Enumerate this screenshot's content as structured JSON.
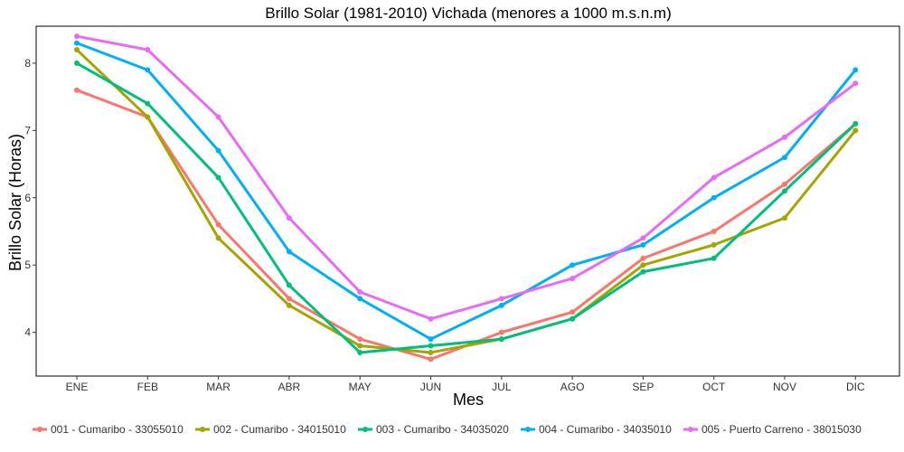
{
  "chart_data": {
    "type": "line",
    "title": "Brillo Solar (1981-2010) Vichada (menores a 1000 m.s.n.m)",
    "xlabel": "Mes",
    "ylabel": "Brillo Solar (Horas)",
    "categories": [
      "ENE",
      "FEB",
      "MAR",
      "ABR",
      "MAY",
      "JUN",
      "JUL",
      "AGO",
      "SEP",
      "OCT",
      "NOV",
      "DIC"
    ],
    "yticks": [
      4,
      5,
      6,
      7,
      8
    ],
    "ylim": [
      3.35,
      8.55
    ],
    "grid": false,
    "legend_position": "bottom",
    "series": [
      {
        "name": "001 - Cumaribo - 33055010",
        "color": "#F8766D",
        "values": [
          7.6,
          7.2,
          5.6,
          4.5,
          3.9,
          3.6,
          4.0,
          4.3,
          5.1,
          5.5,
          6.2,
          7.1
        ]
      },
      {
        "name": "002 - Cumaribo - 34015010",
        "color": "#A3A500",
        "values": [
          8.2,
          7.2,
          5.4,
          4.4,
          3.8,
          3.7,
          3.9,
          4.2,
          5.0,
          5.3,
          5.7,
          7.0
        ]
      },
      {
        "name": "003 - Cumaribo - 34035020",
        "color": "#00BF7D",
        "values": [
          8.0,
          7.4,
          6.3,
          4.7,
          3.7,
          3.8,
          3.9,
          4.2,
          4.9,
          5.1,
          6.1,
          7.1
        ]
      },
      {
        "name": "004 - Cumaribo - 34035010",
        "color": "#00B0F6",
        "values": [
          8.3,
          7.9,
          6.7,
          5.2,
          4.5,
          3.9,
          4.4,
          5.0,
          5.3,
          6.0,
          6.6,
          7.9
        ]
      },
      {
        "name": "005 - Puerto Carreno - 38015030",
        "color": "#E76BF3",
        "values": [
          8.4,
          8.2,
          7.2,
          5.7,
          4.6,
          4.2,
          4.5,
          4.8,
          5.4,
          6.3,
          6.9,
          7.7
        ]
      }
    ]
  }
}
